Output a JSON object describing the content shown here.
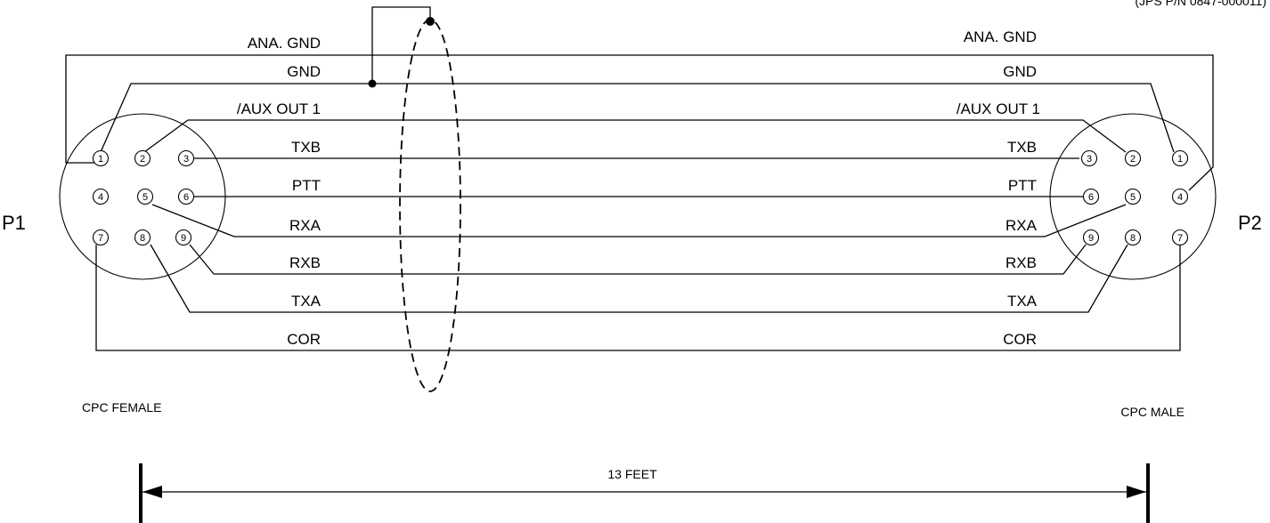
{
  "part_number_note": "(JPS P/N 0847-000011)",
  "p1": {
    "label": "P1",
    "connector_type": "CPC FEMALE",
    "pins": [
      "1",
      "2",
      "3",
      "4",
      "5",
      "6",
      "7",
      "8",
      "9"
    ]
  },
  "p2": {
    "label": "P2",
    "connector_type": "CPC MALE",
    "pins": [
      "3",
      "2",
      "1",
      "6",
      "5",
      "4",
      "9",
      "8",
      "7"
    ]
  },
  "signals": {
    "ana_gnd": "ANA. GND",
    "gnd": "GND",
    "aux_out_1": "/AUX OUT  1",
    "txb": "TXB",
    "ptt": "PTT",
    "rxa": "RXA",
    "rxb": "RXB",
    "txa": "TXA",
    "cor": "COR"
  },
  "length_label": "13 FEET"
}
